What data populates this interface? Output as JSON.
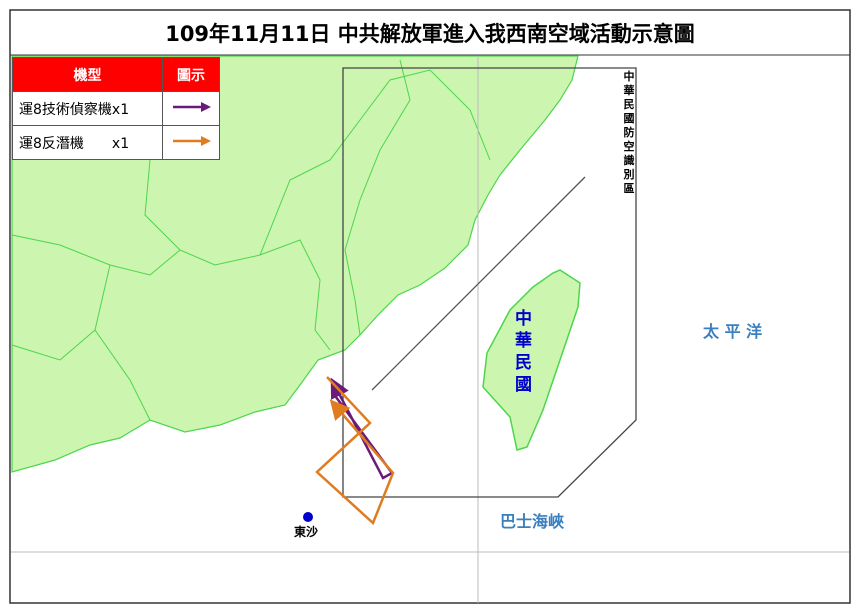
{
  "title": "109年11月11日 中共解放軍進入我西南空域活動示意圖",
  "legend": {
    "header_type": "機型",
    "header_icon": "圖示",
    "items": [
      {
        "label": "運8技術偵察機x1",
        "color": "#6a1b7a"
      },
      {
        "label": "運8反潛機　　x1",
        "color": "#e07b20"
      }
    ]
  },
  "labels": {
    "taiwan": "中華民國",
    "adiz": "中華民國防空識別區",
    "pacific": "太 平 洋",
    "bashi": "巴士海峽",
    "dongsha": "東沙"
  },
  "colors": {
    "land": "#ccf5b0",
    "border": "#4cd64c",
    "adiz_line": "#444444",
    "label_blue": "#0000cc",
    "sea_label": "#3a7fc0",
    "dongsha_dot": "#0000cc"
  }
}
